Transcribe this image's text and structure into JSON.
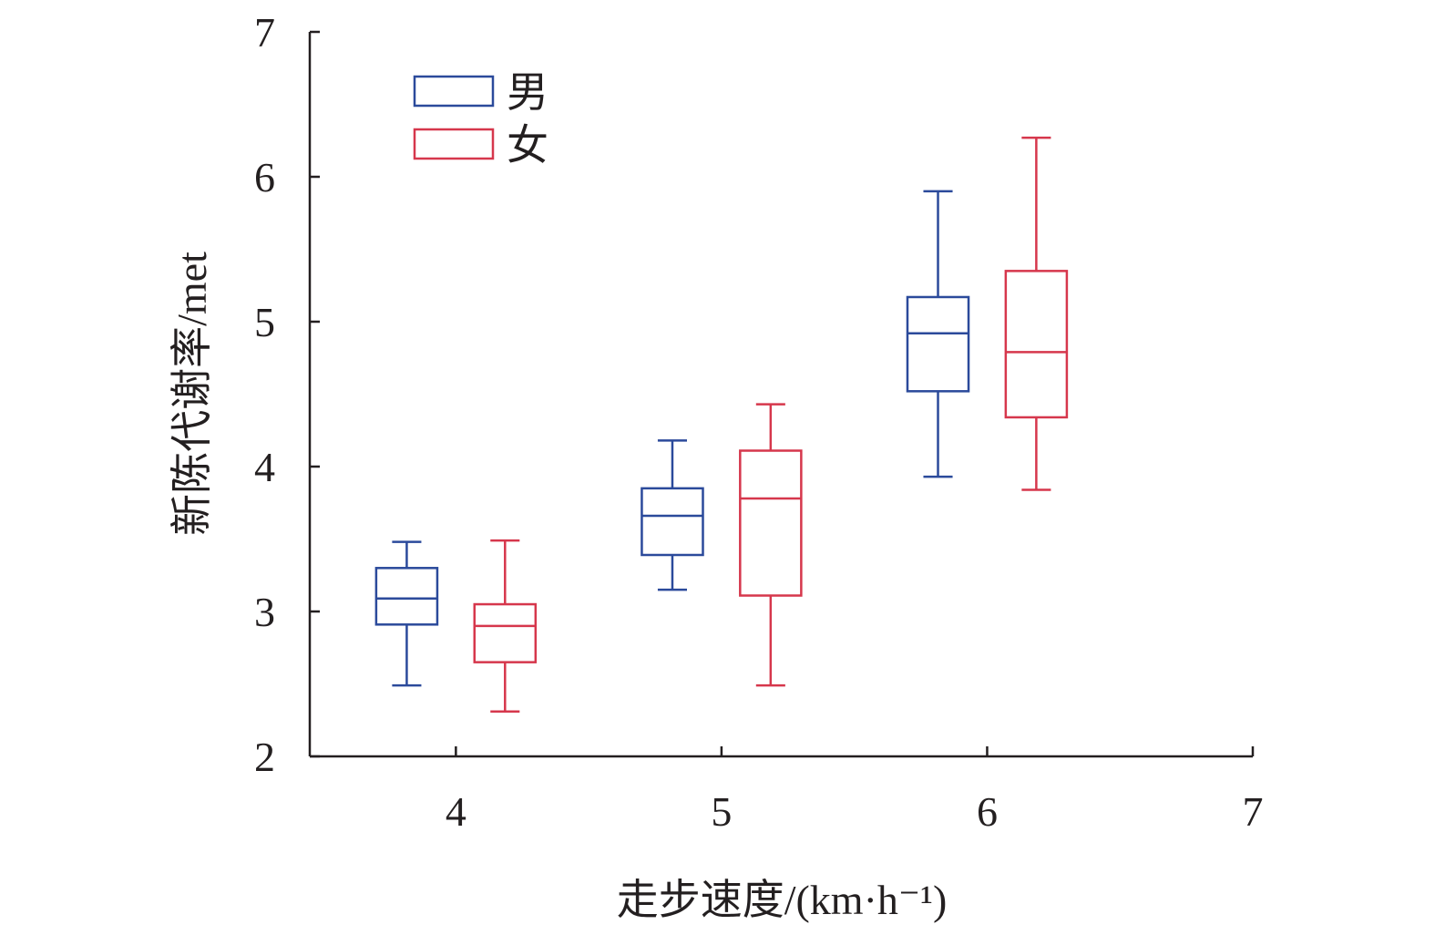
{
  "chart_data": {
    "type": "boxplot",
    "title": "",
    "xlabel": "走步速度/(km·h⁻¹)",
    "ylabel": "新陈代谢率/met",
    "xlim": [
      3.45,
      7
    ],
    "ylim": [
      2,
      7
    ],
    "xticks": [
      4,
      5,
      6,
      7
    ],
    "yticks": [
      2,
      3,
      4,
      5,
      6,
      7
    ],
    "legend_position": "top-left",
    "series": [
      {
        "name": "男",
        "color": "#2b4a9b",
        "boxes": [
          {
            "x": 4,
            "whisker_low": 2.49,
            "q1": 2.91,
            "median": 3.09,
            "q3": 3.3,
            "whisker_high": 3.48
          },
          {
            "x": 5,
            "whisker_low": 3.15,
            "q1": 3.39,
            "median": 3.66,
            "q3": 3.85,
            "whisker_high": 4.18
          },
          {
            "x": 6,
            "whisker_low": 3.93,
            "q1": 4.52,
            "median": 4.92,
            "q3": 5.17,
            "whisker_high": 5.9
          }
        ]
      },
      {
        "name": "女",
        "color": "#d6374c",
        "boxes": [
          {
            "x": 4,
            "whisker_low": 2.31,
            "q1": 2.65,
            "median": 2.9,
            "q3": 3.05,
            "whisker_high": 3.49
          },
          {
            "x": 5,
            "whisker_low": 2.49,
            "q1": 3.11,
            "median": 3.78,
            "q3": 4.11,
            "whisker_high": 4.43
          },
          {
            "x": 6,
            "whisker_low": 3.84,
            "q1": 4.34,
            "median": 4.79,
            "q3": 5.35,
            "whisker_high": 6.27
          }
        ]
      }
    ]
  }
}
